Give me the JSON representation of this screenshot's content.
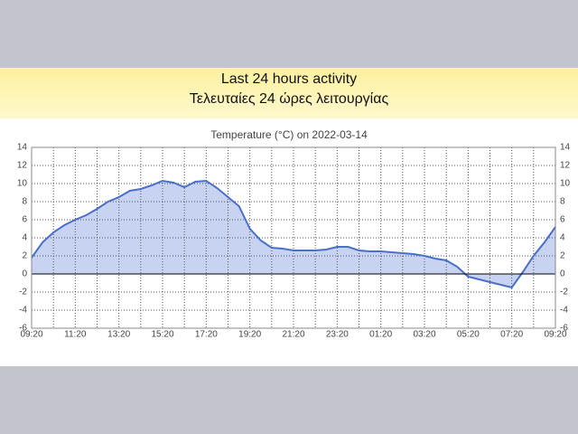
{
  "header": {
    "line1": "Last 24 hours activity",
    "line2": "Τελευταίες 24 ώρες λειτουργίας"
  },
  "chart_data": {
    "type": "area",
    "title": "Temperature (°C) on 2022-03-14",
    "x": [
      0,
      0.5,
      1,
      1.5,
      2,
      2.5,
      3,
      3.5,
      4,
      4.5,
      5,
      5.5,
      6,
      6.5,
      7,
      7.5,
      8,
      8.5,
      9,
      9.5,
      10,
      10.5,
      11,
      11.5,
      12,
      12.5,
      13,
      13.5,
      14,
      14.5,
      15,
      15.5,
      16,
      16.5,
      17,
      17.5,
      18,
      18.5,
      19,
      19.5,
      20,
      20.5,
      21,
      21.5,
      22,
      22.5,
      23,
      23.5,
      24
    ],
    "series": [
      {
        "name": "Temperature",
        "color": "#4a6fc8",
        "values": [
          1.8,
          3.5,
          4.6,
          5.4,
          6.0,
          6.5,
          7.2,
          8.0,
          8.5,
          9.2,
          9.4,
          9.8,
          10.3,
          10.1,
          9.6,
          10.2,
          10.3,
          9.5,
          8.5,
          7.5,
          5.0,
          3.7,
          2.9,
          2.8,
          2.6,
          2.6,
          2.6,
          2.7,
          3.0,
          3.0,
          2.6,
          2.5,
          2.5,
          2.4,
          2.3,
          2.2,
          2.0,
          1.7,
          1.5,
          0.8,
          -0.3,
          -0.6,
          -0.9,
          -1.2,
          -1.5,
          0.2,
          2.0,
          3.5,
          5.2
        ]
      }
    ],
    "fill_color": "#c8d3f2",
    "xlim": [
      0,
      24
    ],
    "xticks": [
      {
        "value": 0,
        "label": "09:20"
      },
      {
        "value": 2,
        "label": "11:20"
      },
      {
        "value": 4,
        "label": "13:20"
      },
      {
        "value": 6,
        "label": "15:20"
      },
      {
        "value": 8,
        "label": "17:20"
      },
      {
        "value": 10,
        "label": "19:20"
      },
      {
        "value": 12,
        "label": "21:20"
      },
      {
        "value": 14,
        "label": "23:20"
      },
      {
        "value": 16,
        "label": "01:20"
      },
      {
        "value": 18,
        "label": "03:20"
      },
      {
        "value": 20,
        "label": "05:20"
      },
      {
        "value": 22,
        "label": "07:20"
      },
      {
        "value": 24,
        "label": "09:20"
      }
    ],
    "ylim": [
      -6,
      14
    ],
    "yticks": [
      -6,
      -4,
      -2,
      0,
      2,
      4,
      6,
      8,
      10,
      12,
      14
    ],
    "grid": true
  }
}
